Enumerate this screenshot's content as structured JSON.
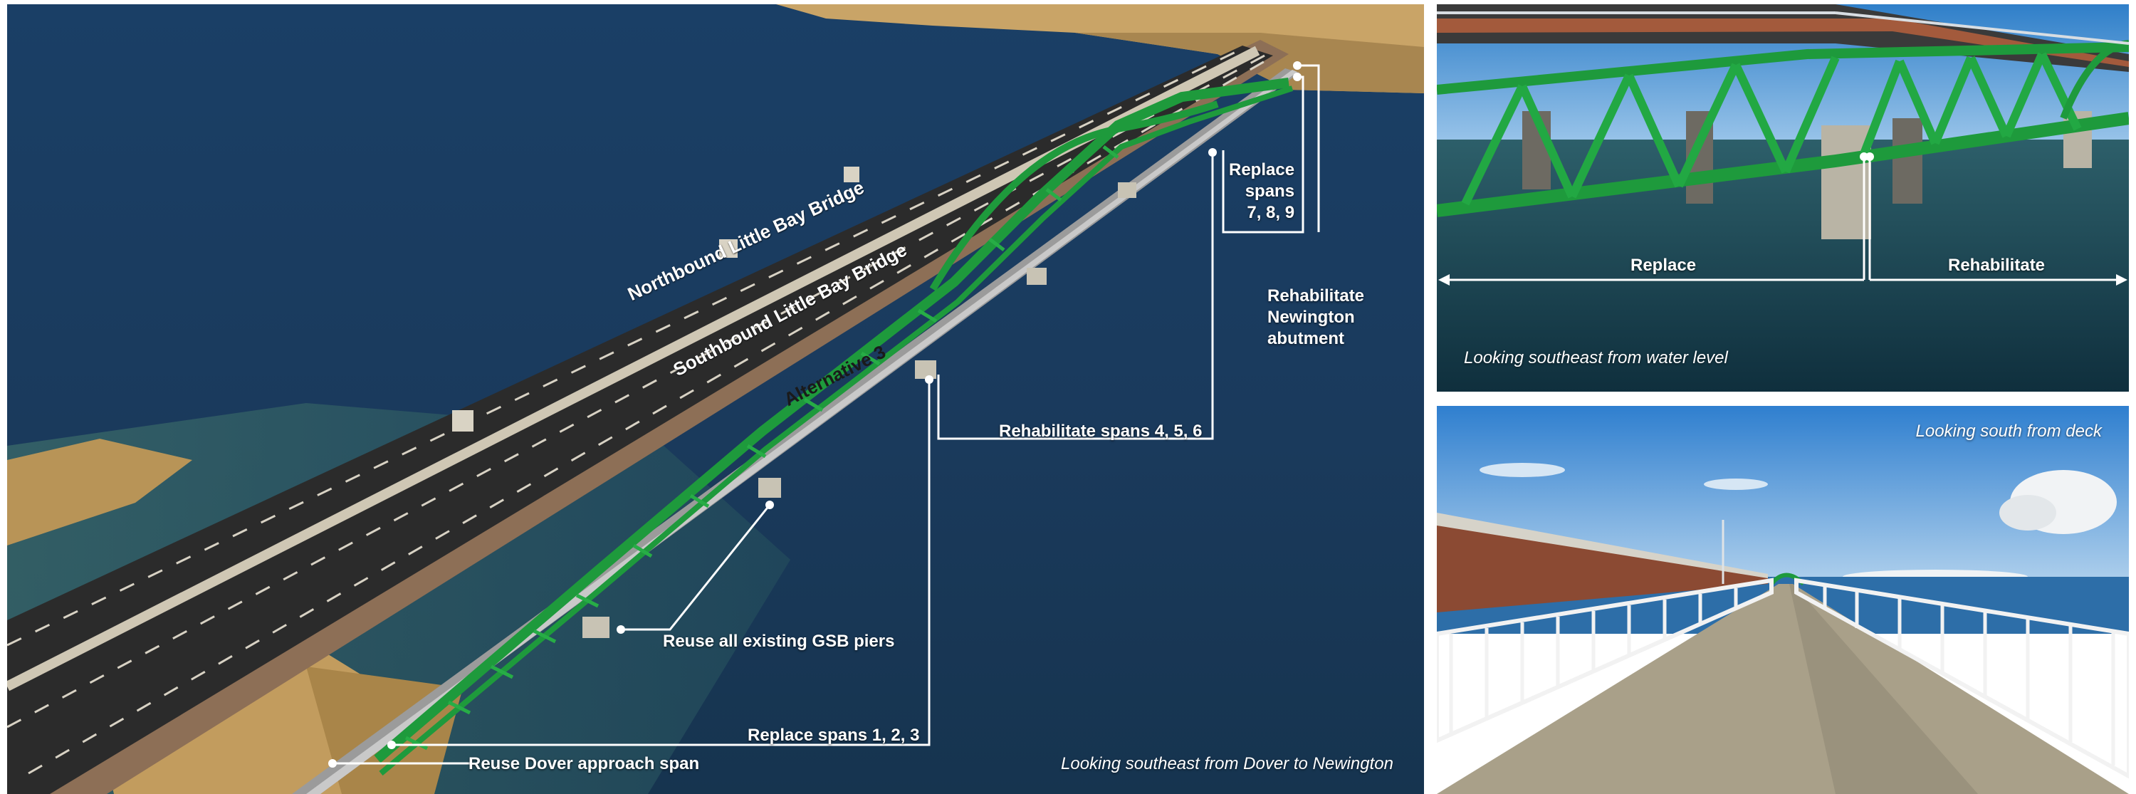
{
  "main_view": {
    "labels": {
      "northbound": "Northbound Little Bay Bridge",
      "southbound": "Southbound Little Bay Bridge",
      "alternative": "Alternative 3",
      "replace_789": "Replace\nspans\n7, 8, 9",
      "rehab_newington": "Rehabilitate\nNewington\nabutment",
      "rehab_456": "Rehabilitate spans 4, 5, 6",
      "reuse_piers": "Reuse all existing GSB piers",
      "replace_123": "Replace spans 1, 2, 3",
      "reuse_dover": "Reuse Dover approach span"
    },
    "caption": "Looking southeast from Dover to Newington"
  },
  "water_view": {
    "labels": {
      "replace": "Replace",
      "rehabilitate": "Rehabilitate"
    },
    "caption": "Looking southeast from water level"
  },
  "deck_view": {
    "caption": "Looking south from deck"
  },
  "colors": {
    "truss_green": "#1e9a3c",
    "water_dark": "#17365a",
    "road": "#2b2b2b",
    "sky": "#3f8ad6",
    "sand": "#c9a467"
  }
}
